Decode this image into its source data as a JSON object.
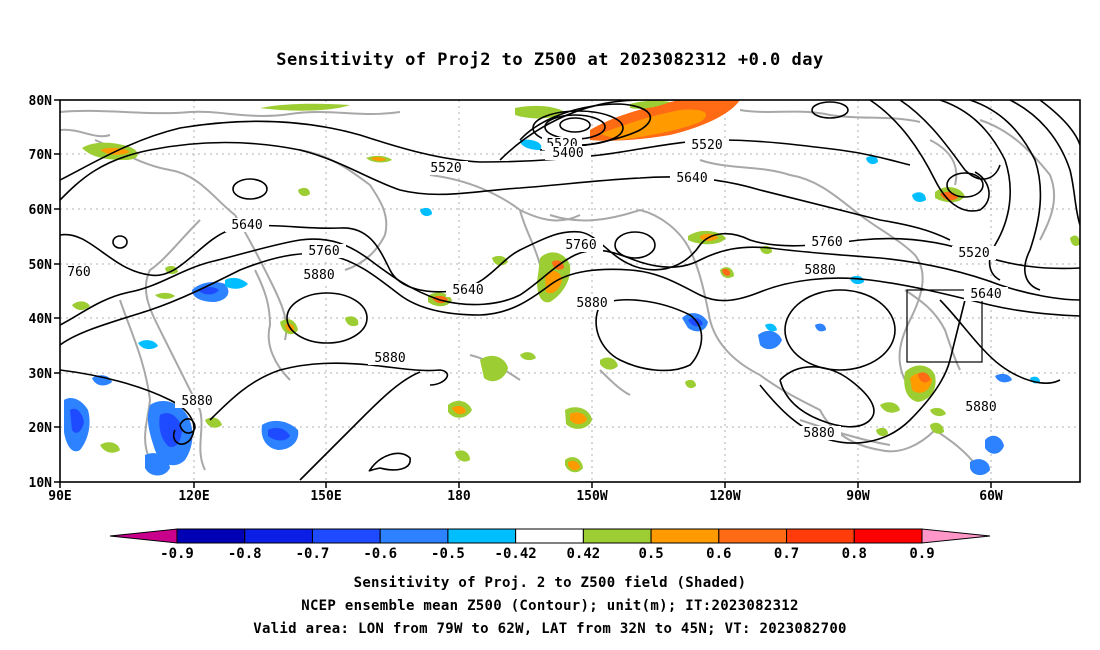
{
  "title": "Sensitivity of Proj2 to Z500 at 2023082312 +0.0 day",
  "lat_labels": [
    "80N",
    "70N",
    "60N",
    "50N",
    "40N",
    "30N",
    "20N",
    "10N"
  ],
  "lon_labels": [
    "90E",
    "120E",
    "150E",
    "180",
    "150W",
    "120W",
    "90W",
    "60W"
  ],
  "contour_labels": {
    "c5520_top": "5520",
    "c5400": "5400",
    "c5520_a": "5520",
    "c5520_b": "5520",
    "c5520_c": "5520",
    "c5640_a": "5640",
    "c5640_b": "5640",
    "c5640_c": "5640",
    "c5640_d": "5640",
    "c5760_left": "760",
    "c5760_a": "5760",
    "c5760_b": "5760",
    "c5760_c": "5760",
    "c5880_a": "5880",
    "c5880_b": "5880",
    "c5880_c": "5880",
    "c5880_d": "5880",
    "c5880_e": "5880",
    "c5880_f": "5880",
    "c5880_g": "5880"
  },
  "colorbar": {
    "labels": [
      "-0.9",
      "-0.8",
      "-0.7",
      "-0.6",
      "-0.5",
      "-0.42",
      "0.42",
      "0.5",
      "0.6",
      "0.7",
      "0.8",
      "0.9"
    ],
    "colors": [
      "#0000b4",
      "#0a1ee6",
      "#1e4bff",
      "#2d82ff",
      "#00beff",
      "#ffffff",
      "#9ccd32",
      "#ff9b00",
      "#ff6a14",
      "#ff3c0a",
      "#ff0000"
    ],
    "low_color": "#c8008c",
    "high_color": "#ff96c8"
  },
  "captions": {
    "line1": "Sensitivity of Proj. 2 to Z500 field (Shaded)",
    "line2": "NCEP ensemble mean Z500 (Contour); unit(m); IT:2023082312",
    "line3": "Valid area: LON from 79W to 62W, LAT from 32N to 45N; VT: 2023082700"
  }
}
